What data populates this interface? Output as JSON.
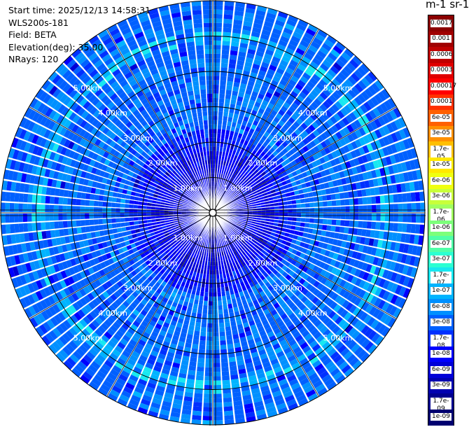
{
  "info": {
    "start_time": "Start time: 2025/12/13 14:58:31",
    "device": "WLS200s-181",
    "field": "Field: BETA",
    "elevation": "Elevation(deg): 35.00",
    "nrays": "NRays: 120"
  },
  "colorbar": {
    "unit_label": "m-1 sr-1",
    "ticks": [
      "0.0017",
      "0.001",
      "0.0006",
      "0.0003",
      "0.00017",
      "0.0001",
      "6e-05",
      "3e-05",
      "1.7e-05",
      "1e-05",
      "6e-06",
      "3e-06",
      "1.7e-06",
      "1e-06",
      "6e-07",
      "3e-07",
      "1.7e-07",
      "1e-07",
      "6e-08",
      "3e-08",
      "1.7e-08",
      "1e-08",
      "6e-09",
      "3e-09",
      "1.7e-09",
      "1e-09"
    ],
    "colors": [
      "#8b0000",
      "#a00000",
      "#c00000",
      "#e00000",
      "#ff0000",
      "#ff3000",
      "#ff6000",
      "#ff9000",
      "#ffbf00",
      "#ffe800",
      "#f0ff10",
      "#c8ff3a",
      "#a0ff60",
      "#7cff7a",
      "#50ffa8",
      "#2cffd2",
      "#18e8f0",
      "#00b4ff",
      "#0090ff",
      "#0060ff",
      "#0030ff",
      "#0000ff",
      "#0000d8",
      "#0000b0",
      "#000090",
      "#000070"
    ]
  },
  "chart_data": {
    "type": "heatmap",
    "projection": "polar-ppi",
    "field": "BETA",
    "elevation_deg": 35.0,
    "n_rays": 120,
    "ring_labels": [
      "1.00km",
      "2.00km",
      "3.00km",
      "4.00km",
      "5.00km"
    ],
    "rings_km": [
      1,
      2,
      3,
      4,
      5
    ],
    "max_range_km": 6,
    "color_scale": "log",
    "value_range": [
      1e-09,
      0.0017
    ],
    "typical_values": {
      "near_center_0_to_2km": "1e-09 to 3e-09",
      "mid_range_2_to_5km": "1e-08 to 6e-08",
      "outer_band_near_4.9km": "1.7e-07 to 1e-07"
    }
  }
}
